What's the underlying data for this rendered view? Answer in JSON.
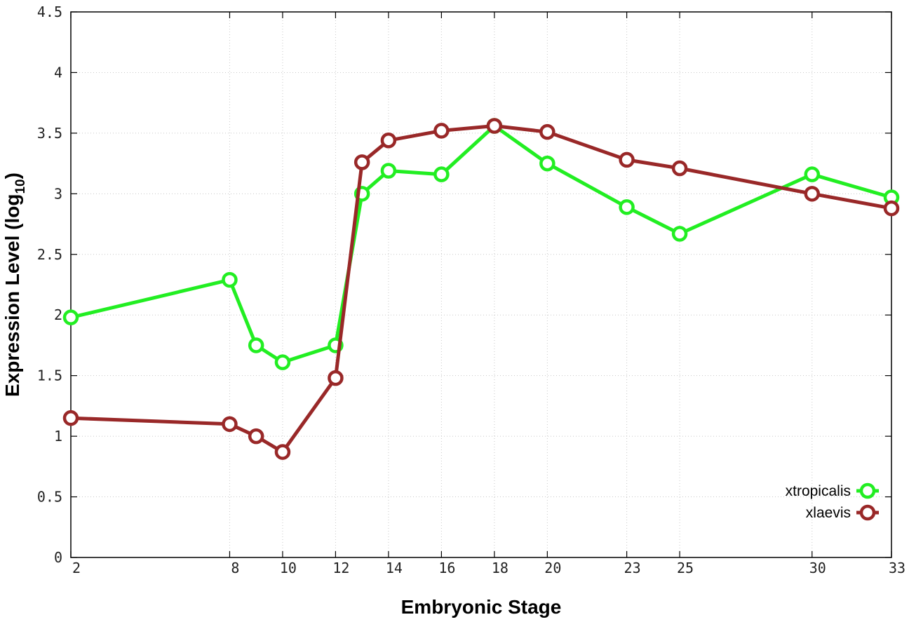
{
  "chart_data": {
    "type": "line",
    "title": "",
    "xlabel": "Embryonic Stage",
    "ylabel_main": "Expression Level (log",
    "ylabel_sub": "10",
    "ylabel_close": ")",
    "x": [
      2,
      8,
      9,
      10,
      12,
      13,
      14,
      16,
      18,
      20,
      23,
      25,
      30,
      33
    ],
    "x_ticks": [
      2,
      8,
      10,
      12,
      14,
      16,
      18,
      20,
      23,
      25,
      30,
      33
    ],
    "x_tick_labels": [
      "2",
      "8",
      "10",
      "12",
      "14",
      "16",
      "18",
      "20",
      "23",
      "25",
      "30",
      "33"
    ],
    "y_ticks": [
      0,
      0.5,
      1,
      1.5,
      2,
      2.5,
      3,
      3.5,
      4,
      4.5
    ],
    "y_tick_labels": [
      "0",
      "0.5",
      "1",
      "1.5",
      "2",
      "2.5",
      "3",
      "3.5",
      "4",
      "4.5"
    ],
    "xlim": [
      2,
      33
    ],
    "ylim": [
      0,
      4.5
    ],
    "grid": true,
    "legend_position": "bottom-right",
    "series": [
      {
        "name": "xtropicalis",
        "color": "#22ee22",
        "values": [
          1.98,
          2.29,
          1.75,
          1.61,
          1.75,
          3.0,
          3.19,
          3.16,
          3.56,
          3.25,
          2.89,
          2.67,
          3.16,
          2.97
        ]
      },
      {
        "name": "xlaevis",
        "color": "#992828",
        "values": [
          1.15,
          1.1,
          1.0,
          0.87,
          1.48,
          3.26,
          3.44,
          3.52,
          3.56,
          3.51,
          3.28,
          3.21,
          3.0,
          2.88
        ]
      }
    ]
  }
}
